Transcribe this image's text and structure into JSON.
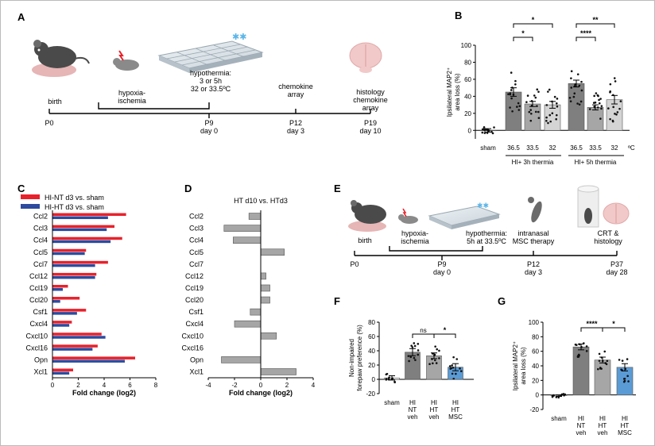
{
  "panels": {
    "a": "A",
    "b": "B",
    "c": "C",
    "d": "D",
    "e": "E",
    "f": "F",
    "g": "G"
  },
  "timeline_a": {
    "events": [
      "birth",
      "hypoxia-\nischemia",
      "hypothermia:\n3 or 5h\n32 or 33.5ºC",
      "chemokine\narray",
      "histology\nchemokine\narray"
    ],
    "ticks": [
      "P0",
      "P9\nday 0",
      "P12\nday 3",
      "P19\nday 10"
    ]
  },
  "timeline_e": {
    "events": [
      "birth",
      "hypoxia-\nischemia",
      "hypothermia:\n5h at 33.5ºC",
      "intranasal\nMSC therapy",
      "CRT &\nhistology"
    ],
    "ticks": [
      "P0",
      "P9\nday 0",
      "P12\nday 3",
      "P37\nday 28"
    ]
  },
  "colors": {
    "red": "#e8212b",
    "blue": "#2e4a9e",
    "grey": "#a6a6a6",
    "dark": "#7f7f7f",
    "mid": "#a6a6a6",
    "light": "#d4d4d4",
    "msc": "#5b9bd5",
    "sham": "#ffffff"
  },
  "chart_data": [
    {
      "id": "B",
      "type": "bar",
      "ylabel": "Ipsilateral MAP2⁺\narea loss (%)",
      "ylim": [
        -10,
        100
      ],
      "yticks": [
        0,
        20,
        40,
        60,
        80,
        100
      ],
      "categories": [
        "sham",
        "36.5",
        "33.5",
        "32",
        "36.5",
        "33.5",
        "32"
      ],
      "values": [
        0,
        45,
        31,
        30,
        55,
        27,
        36
      ],
      "errors": [
        2,
        5,
        3,
        4,
        4,
        3,
        5
      ],
      "unit_label": "ºC",
      "group_labels": [
        "HI+ 3h thermia",
        "HI+ 5h thermia"
      ],
      "significance": [
        "*",
        "*",
        "**",
        "****"
      ]
    },
    {
      "id": "C",
      "type": "bar",
      "orientation": "horizontal",
      "xlabel": "Fold change (log2)",
      "xlim": [
        0,
        8
      ],
      "xticks": [
        0,
        2,
        4,
        6,
        8
      ],
      "categories": [
        "Ccl2",
        "Ccl3",
        "Ccl4",
        "Ccl5",
        "Ccl7",
        "Ccl12",
        "Ccl19",
        "Ccl20",
        "Csf1",
        "Cxcl4",
        "Cxcl10",
        "Cxcl16",
        "Opn",
        "Xcl1"
      ],
      "series": [
        {
          "name": "HI-NT d3 vs. sham",
          "values": [
            5.7,
            4.8,
            5.4,
            2.6,
            4.3,
            3.4,
            1.2,
            2.1,
            2.6,
            1.5,
            3.8,
            3.5,
            6.4,
            1.6
          ]
        },
        {
          "name": "HI-HT d3 vs. sham",
          "values": [
            4.3,
            4.2,
            4.5,
            2.5,
            3.3,
            3.3,
            0.8,
            0.6,
            1.9,
            1.3,
            4.1,
            3.1,
            5.6,
            1.3
          ]
        }
      ]
    },
    {
      "id": "D",
      "type": "bar",
      "orientation": "horizontal",
      "title": "HT d10 vs. HTd3",
      "xlabel": "Fold change (log2)",
      "xlim": [
        -4,
        4
      ],
      "xticks": [
        -4,
        -2,
        0,
        2,
        4
      ],
      "categories": [
        "Ccl2",
        "Ccl3",
        "Ccl4",
        "Ccl5",
        "Ccl7",
        "Ccl12",
        "Ccl19",
        "Ccl20",
        "Csf1",
        "Cxcl4",
        "Cxcl10",
        "Cxcl16",
        "Opn",
        "Xcl1"
      ],
      "values": [
        -0.9,
        -2.8,
        -2.1,
        1.8,
        0.0,
        0.4,
        0.7,
        0.7,
        -0.8,
        -2.0,
        1.2,
        0.0,
        -3.0,
        2.7
      ]
    },
    {
      "id": "F",
      "type": "bar",
      "ylabel": "Non-impaired\nforepaw preference (%)",
      "ylim": [
        -20,
        80
      ],
      "yticks": [
        -20,
        0,
        20,
        40,
        60,
        80
      ],
      "categories": [
        "sham",
        "HI\nNT\nveh",
        "HI\nHT\nveh",
        "HI\nHT\nMSC"
      ],
      "values": [
        2,
        38,
        33,
        17
      ],
      "errors": [
        3,
        5,
        4,
        5
      ],
      "significance": [
        "ns",
        "*"
      ]
    },
    {
      "id": "G",
      "type": "bar",
      "ylabel": "Ipsilateral MAP2⁺\narea loss (%)",
      "ylim": [
        -20,
        100
      ],
      "yticks": [
        -20,
        0,
        20,
        40,
        60,
        80,
        100
      ],
      "categories": [
        "sham",
        "HI\nNT\nveh",
        "HI\nHT\nveh",
        "HI\nHT\nMSC"
      ],
      "values": [
        -1,
        66,
        48,
        38
      ],
      "errors": [
        1,
        4,
        4,
        5
      ],
      "significance": [
        "****",
        "*"
      ]
    }
  ]
}
